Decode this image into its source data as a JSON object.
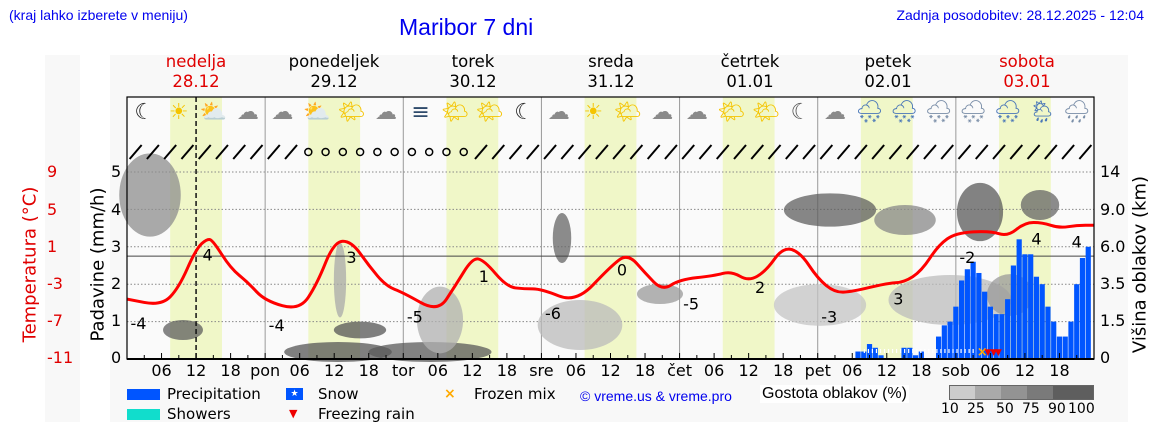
{
  "header": {
    "hint": "(kraj lahko izberete v meniju)",
    "title": "Maribor 7 dni",
    "updated": "Zadnja posodobitev: 28.12.2025 - 12:04"
  },
  "days": [
    {
      "name": "nedelja",
      "date": "28.12",
      "weekend": true
    },
    {
      "name": "ponedeljek",
      "date": "29.12",
      "weekend": false
    },
    {
      "name": "torek",
      "date": "30.12",
      "weekend": false
    },
    {
      "name": "sreda",
      "date": "31.12",
      "weekend": false
    },
    {
      "name": "četrtek",
      "date": "01.01",
      "weekend": false
    },
    {
      "name": "petek",
      "date": "02.01",
      "weekend": false
    },
    {
      "name": "sobota",
      "date": "03.01",
      "weekend": true
    }
  ],
  "weather_icons": [
    "moon",
    "sun",
    "sun-cloud",
    "moon-cloud",
    "moon-cloud",
    "sun-cloud",
    "sun-small-cloud",
    "moon-cloud",
    "moon-fog",
    "sun-small-cloud",
    "sun-small-cloud",
    "moon",
    "moon-cloud",
    "sun",
    "sun-small-cloud",
    "moon-cloud",
    "moon-cloud",
    "sun-small-cloud",
    "sun-small-cloud",
    "moon-small-cloud",
    "moon-cloud",
    "cloud-snow-rain",
    "cloud-snow-rain",
    "moon-cloud-snow",
    "moon-cloud-snow",
    "cloud-snow-rain",
    "sun-cloud-rain",
    "moon-cloud-rain"
  ],
  "axes": {
    "temp_title": "Temperatura (°C)",
    "temp_ticks": [
      "9",
      "5",
      "1",
      "-3",
      "-7",
      "-11"
    ],
    "precip_title": "Padavine (mm/h)",
    "precip_ticks": [
      "5",
      "4",
      "3",
      "2",
      "1",
      "0"
    ],
    "cloud_title": "Višina oblakov (km)",
    "cloud_ticks": [
      "14",
      "9.0",
      "6.0",
      "3.5",
      "1.5",
      "0"
    ],
    "x_ticks": [
      "06",
      "12",
      "18",
      "pon",
      "06",
      "12",
      "18",
      "tor",
      "06",
      "12",
      "18",
      "sre",
      "06",
      "12",
      "18",
      "čet",
      "06",
      "12",
      "18",
      "pet",
      "06",
      "12",
      "18",
      "sob",
      "06",
      "12",
      "18"
    ]
  },
  "legend": {
    "precipitation": "Precipitation",
    "showers": "Showers",
    "snow": "Snow",
    "freezing_rain": "Freezing rain",
    "frozen_mix": "Frozen mix",
    "credit": "© vreme.us & vreme.pro",
    "cloud_density_title": "Gostota oblakov (%)",
    "cloud_density_steps": [
      "10",
      "25",
      "50",
      "75",
      "90",
      "100"
    ]
  },
  "colors": {
    "precipitation": "#0055ff",
    "showers": "#11ddcc",
    "snow": "#0055ff",
    "freezing_rain": "#ee0000",
    "frozen_mix": "#ffaa00",
    "temperature": "#ff0000",
    "daylight": "#f0f7c8",
    "header_text": "#0000ee",
    "weekend": "#e00000"
  },
  "chart_data": {
    "type": "line",
    "title": "Maribor 7 dni",
    "xlabel": "",
    "ylabel": "Temperatura (°C)",
    "ylim": [
      -11,
      9
    ],
    "grid": true,
    "series": [
      {
        "name": "Temperatura (°C)",
        "x_hours": [
          0,
          6,
          9,
          12,
          14,
          15,
          18,
          21,
          24,
          30,
          33,
          36,
          39,
          42,
          45,
          48,
          54,
          57,
          60,
          62,
          66,
          69,
          72,
          78,
          84,
          87,
          90,
          93,
          96,
          102,
          105,
          108,
          111,
          114,
          117,
          120,
          123,
          126,
          132,
          135,
          138,
          141,
          144,
          150,
          153,
          156,
          159,
          162,
          165,
          168
        ],
        "values": [
          -4.6,
          -5.3,
          -3.4,
          0.8,
          1.9,
          1.6,
          -1.3,
          -2.8,
          -4.8,
          -5.8,
          -3,
          1.6,
          1.6,
          -1,
          -3.2,
          -3.9,
          -6,
          -3.2,
          -0.2,
          -0.4,
          -3.3,
          -3.5,
          -3.5,
          -5,
          -1.1,
          0.3,
          -1.8,
          -3.7,
          -2.5,
          -2.1,
          -1.6,
          -2.7,
          -1.6,
          1,
          0.4,
          -2.4,
          -3.9,
          -3.8,
          -2.9,
          -2.8,
          -1.6,
          1.2,
          2.5,
          2.7,
          2.1,
          3.6,
          3.6,
          3.0,
          3.3,
          3.3
        ],
        "labels": [
          {
            "hour": 2,
            "text": "-4"
          },
          {
            "hour": 14,
            "text": "4"
          },
          {
            "hour": 26,
            "text": "-4"
          },
          {
            "hour": 39,
            "text": "3"
          },
          {
            "hour": 50,
            "text": "-5"
          },
          {
            "hour": 62,
            "text": "1"
          },
          {
            "hour": 74,
            "text": "-6"
          },
          {
            "hour": 86,
            "text": "0"
          },
          {
            "hour": 98,
            "text": "-5"
          },
          {
            "hour": 110,
            "text": "2"
          },
          {
            "hour": 122,
            "text": "-3"
          },
          {
            "hour": 134,
            "text": "3"
          },
          {
            "hour": 146,
            "text": "-2"
          },
          {
            "hour": 158,
            "text": "4"
          },
          {
            "hour": 165,
            "text": "4"
          }
        ]
      },
      {
        "name": "Precipitation (mm/h)",
        "type": "bar",
        "x_hours": [
          127,
          128,
          129,
          130,
          131,
          135,
          136,
          137,
          138,
          141,
          142,
          143,
          144,
          145,
          146,
          147,
          148,
          149,
          150,
          151,
          152,
          153,
          154,
          155,
          156,
          157,
          158,
          159,
          160,
          161,
          162,
          163,
          164,
          165,
          166,
          167
        ],
        "values": [
          0.2,
          0.2,
          0.4,
          0.3,
          0.1,
          0.3,
          0.3,
          0.1,
          0.2,
          0.6,
          0.9,
          1.0,
          1.4,
          2.1,
          2.4,
          2.6,
          2.3,
          1.8,
          1.4,
          1.2,
          1.2,
          1.6,
          2.5,
          3.2,
          2.8,
          2.8,
          2.2,
          2.0,
          1.4,
          1.0,
          0.6,
          0.6,
          1.0,
          2.0,
          2.7,
          3.0
        ]
      }
    ],
    "secondary_axes": {
      "precip": {
        "label": "Padavine (mm/h)",
        "range": [
          0,
          5
        ]
      },
      "cloud_height": {
        "label": "Višina oblakov (km)",
        "ticks": [
          0,
          1.5,
          3.5,
          6.0,
          9.0,
          14
        ]
      }
    },
    "categories_days": [
      "nedelja 28.12",
      "ponedeljek 29.12",
      "torek 30.12",
      "sreda 31.12",
      "četrtek 01.01",
      "petek 02.01",
      "sobota 03.01"
    ],
    "current_time_marker_hour": 12,
    "legend": [
      "Precipitation",
      "Showers",
      "Snow",
      "Freezing rain",
      "Frozen mix"
    ],
    "cloud_density_legend_pct": [
      10,
      25,
      50,
      75,
      90,
      100
    ]
  }
}
